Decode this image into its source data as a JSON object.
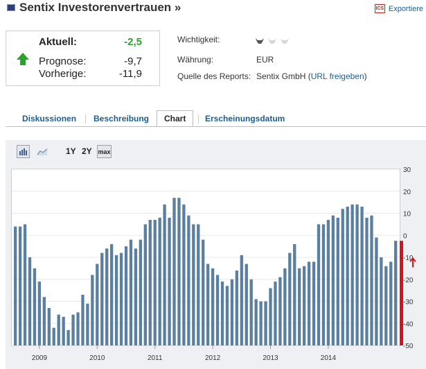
{
  "header": {
    "title": "Sentix Investorenvertrauen »",
    "export_label": "Exportiere",
    "export_icon_text": "ICS"
  },
  "quote": {
    "current_label": "Aktuell:",
    "current_value": "-2,5",
    "forecast_label": "Prognose:",
    "forecast_value": "-9,7",
    "previous_label": "Vorherige:",
    "previous_value": "-11,9",
    "trend_icon": "arrow-up-green"
  },
  "meta": {
    "importance_label": "Wichtigkeit:",
    "importance_level": 1,
    "importance_max": 3,
    "currency_label": "Währung:",
    "currency_value": "EUR",
    "source_label": "Quelle des Reports:",
    "source_value": "Sentix GmbH",
    "source_link_open": "(",
    "source_link_label": "URL freigeben",
    "source_link_close": ")"
  },
  "tabs": [
    {
      "label": "Diskussionen",
      "active": false
    },
    {
      "label": "Beschreibung",
      "active": false
    },
    {
      "label": "Chart",
      "active": true
    },
    {
      "label": "Erscheinungsdatum",
      "active": false
    }
  ],
  "toolbar": {
    "bar_icon": "bar-chart-icon",
    "line_icon": "line-chart-icon",
    "ranges": [
      "1Y",
      "2Y",
      "max"
    ],
    "selected_range": "max"
  },
  "colors": {
    "bar": "#5b7fa0",
    "positive": "#2aa12a",
    "link": "#1a5d94",
    "marker": "#d8121c"
  },
  "chart_data": {
    "type": "bar",
    "x_tick_labels": [
      "2009",
      "2010",
      "2011",
      "2012",
      "2013",
      "2014"
    ],
    "y_ticks": [
      30,
      20,
      10,
      0,
      -10,
      -20,
      -30,
      -40,
      -50
    ],
    "ylim": [
      -50,
      30
    ],
    "grid": true,
    "y_axis_position": "right",
    "current_marker_value": -2.5,
    "series": [
      {
        "values": [
          4,
          4,
          5,
          -10,
          -15,
          -21,
          -28,
          -33,
          -42,
          -36,
          -37,
          -43,
          -36,
          -35,
          -27,
          -31,
          -18,
          -13,
          -8,
          -6,
          -4,
          -9,
          -8,
          -5,
          -2,
          -6,
          -2,
          5,
          7,
          7,
          8,
          14,
          8,
          17,
          17,
          14,
          9,
          5,
          5,
          -2,
          -13,
          -15,
          -18,
          -21,
          -23,
          -20,
          -16,
          -9,
          -13,
          -20,
          -29,
          -30,
          -30,
          -24,
          -21,
          -19,
          -15,
          -8,
          -4,
          -15,
          -14,
          -12,
          -12,
          5,
          5,
          7,
          9,
          8,
          12,
          13,
          14,
          14,
          13,
          8,
          9,
          -1,
          -10,
          -14,
          -12,
          -2.5
        ]
      }
    ]
  }
}
